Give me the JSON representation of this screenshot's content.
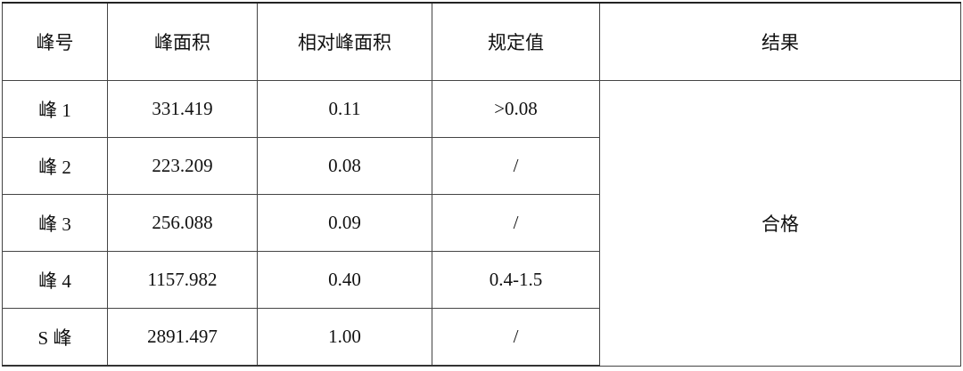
{
  "headers": [
    "峰号",
    "峰面积",
    "相对峰面积",
    "规定值",
    "结果"
  ],
  "rows": [
    {
      "peak": "峰 1",
      "area": "331.419",
      "relative": "0.11",
      "spec": ">0.08"
    },
    {
      "peak": "峰 2",
      "area": "223.209",
      "relative": "0.08",
      "spec": "/"
    },
    {
      "peak": "峰 3",
      "area": "256.088",
      "relative": "0.09",
      "spec": "/"
    },
    {
      "peak": "峰 4",
      "area": "1157.982",
      "relative": "0.40",
      "spec": "0.4-1.5"
    },
    {
      "peak": "S 峰",
      "area": "2891.497",
      "relative": "1.00",
      "spec": "/"
    }
  ],
  "result": "合格"
}
